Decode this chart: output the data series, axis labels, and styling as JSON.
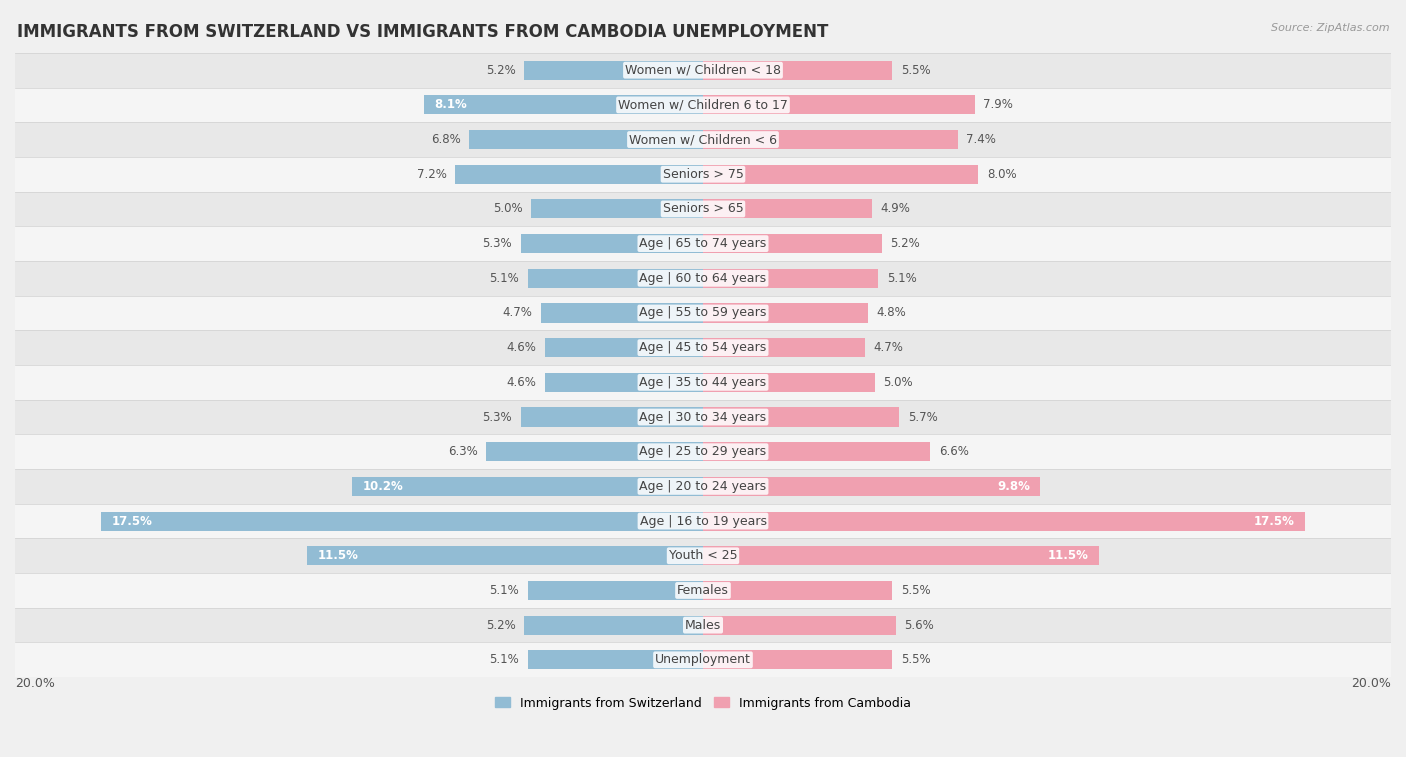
{
  "title": "IMMIGRANTS FROM SWITZERLAND VS IMMIGRANTS FROM CAMBODIA UNEMPLOYMENT",
  "source": "Source: ZipAtlas.com",
  "categories": [
    "Unemployment",
    "Males",
    "Females",
    "Youth < 25",
    "Age | 16 to 19 years",
    "Age | 20 to 24 years",
    "Age | 25 to 29 years",
    "Age | 30 to 34 years",
    "Age | 35 to 44 years",
    "Age | 45 to 54 years",
    "Age | 55 to 59 years",
    "Age | 60 to 64 years",
    "Age | 65 to 74 years",
    "Seniors > 65",
    "Seniors > 75",
    "Women w/ Children < 6",
    "Women w/ Children 6 to 17",
    "Women w/ Children < 18"
  ],
  "switzerland_values": [
    5.1,
    5.2,
    5.1,
    11.5,
    17.5,
    10.2,
    6.3,
    5.3,
    4.6,
    4.6,
    4.7,
    5.1,
    5.3,
    5.0,
    7.2,
    6.8,
    8.1,
    5.2
  ],
  "cambodia_values": [
    5.5,
    5.6,
    5.5,
    11.5,
    17.5,
    9.8,
    6.6,
    5.7,
    5.0,
    4.7,
    4.8,
    5.1,
    5.2,
    4.9,
    8.0,
    7.4,
    7.9,
    5.5
  ],
  "switzerland_color": "#92bcd4",
  "cambodia_color": "#f0a0b0",
  "max_value": 20.0,
  "background_color": "#f0f0f0",
  "row_colors": [
    "#f5f5f5",
    "#e8e8e8"
  ],
  "title_fontsize": 12,
  "label_fontsize": 9,
  "value_fontsize": 8.5,
  "legend_label_switzerland": "Immigrants from Switzerland",
  "legend_label_cambodia": "Immigrants from Cambodia"
}
